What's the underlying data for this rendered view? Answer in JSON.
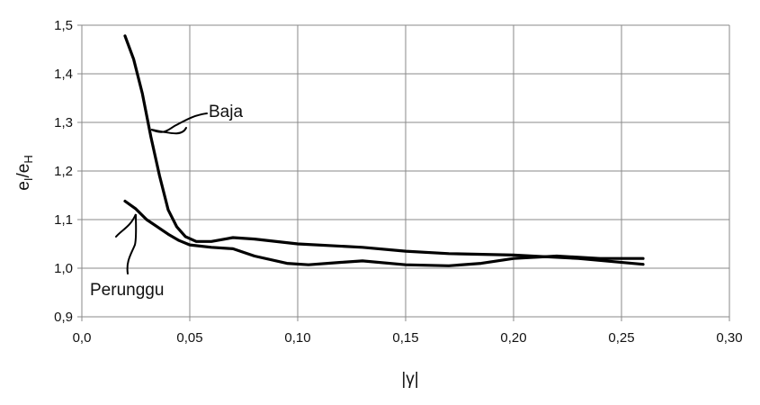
{
  "chart_data": {
    "type": "line",
    "title": "",
    "xlabel": "|γ|",
    "ylabel": "e_I/e_H",
    "xlim": [
      0.0,
      0.3
    ],
    "ylim": [
      0.9,
      1.5
    ],
    "x_ticks": [
      "0,0",
      "0,05",
      "0,10",
      "0,15",
      "0,20",
      "0,25",
      "0,30"
    ],
    "y_ticks": [
      "0,9",
      "1,0",
      "1,1",
      "1,2",
      "1,3",
      "1,4",
      "1,5"
    ],
    "grid": true,
    "series": [
      {
        "name": "Baja",
        "points": [
          [
            0.02,
            1.478
          ],
          [
            0.024,
            1.43
          ],
          [
            0.028,
            1.36
          ],
          [
            0.032,
            1.27
          ],
          [
            0.036,
            1.19
          ],
          [
            0.04,
            1.12
          ],
          [
            0.044,
            1.085
          ],
          [
            0.048,
            1.065
          ],
          [
            0.053,
            1.055
          ],
          [
            0.06,
            1.055
          ],
          [
            0.07,
            1.063
          ],
          [
            0.08,
            1.06
          ],
          [
            0.1,
            1.05
          ],
          [
            0.13,
            1.043
          ],
          [
            0.15,
            1.035
          ],
          [
            0.17,
            1.03
          ],
          [
            0.2,
            1.027
          ],
          [
            0.23,
            1.02
          ],
          [
            0.26,
            1.008
          ]
        ]
      },
      {
        "name": "Perunggu",
        "points": [
          [
            0.02,
            1.138
          ],
          [
            0.025,
            1.122
          ],
          [
            0.03,
            1.1
          ],
          [
            0.035,
            1.085
          ],
          [
            0.04,
            1.07
          ],
          [
            0.045,
            1.057
          ],
          [
            0.05,
            1.048
          ],
          [
            0.06,
            1.043
          ],
          [
            0.07,
            1.04
          ],
          [
            0.08,
            1.025
          ],
          [
            0.095,
            1.01
          ],
          [
            0.105,
            1.007
          ],
          [
            0.12,
            1.012
          ],
          [
            0.13,
            1.015
          ],
          [
            0.15,
            1.007
          ],
          [
            0.17,
            1.005
          ],
          [
            0.185,
            1.01
          ],
          [
            0.2,
            1.02
          ],
          [
            0.22,
            1.025
          ],
          [
            0.24,
            1.02
          ],
          [
            0.26,
            1.02
          ]
        ]
      }
    ]
  }
}
